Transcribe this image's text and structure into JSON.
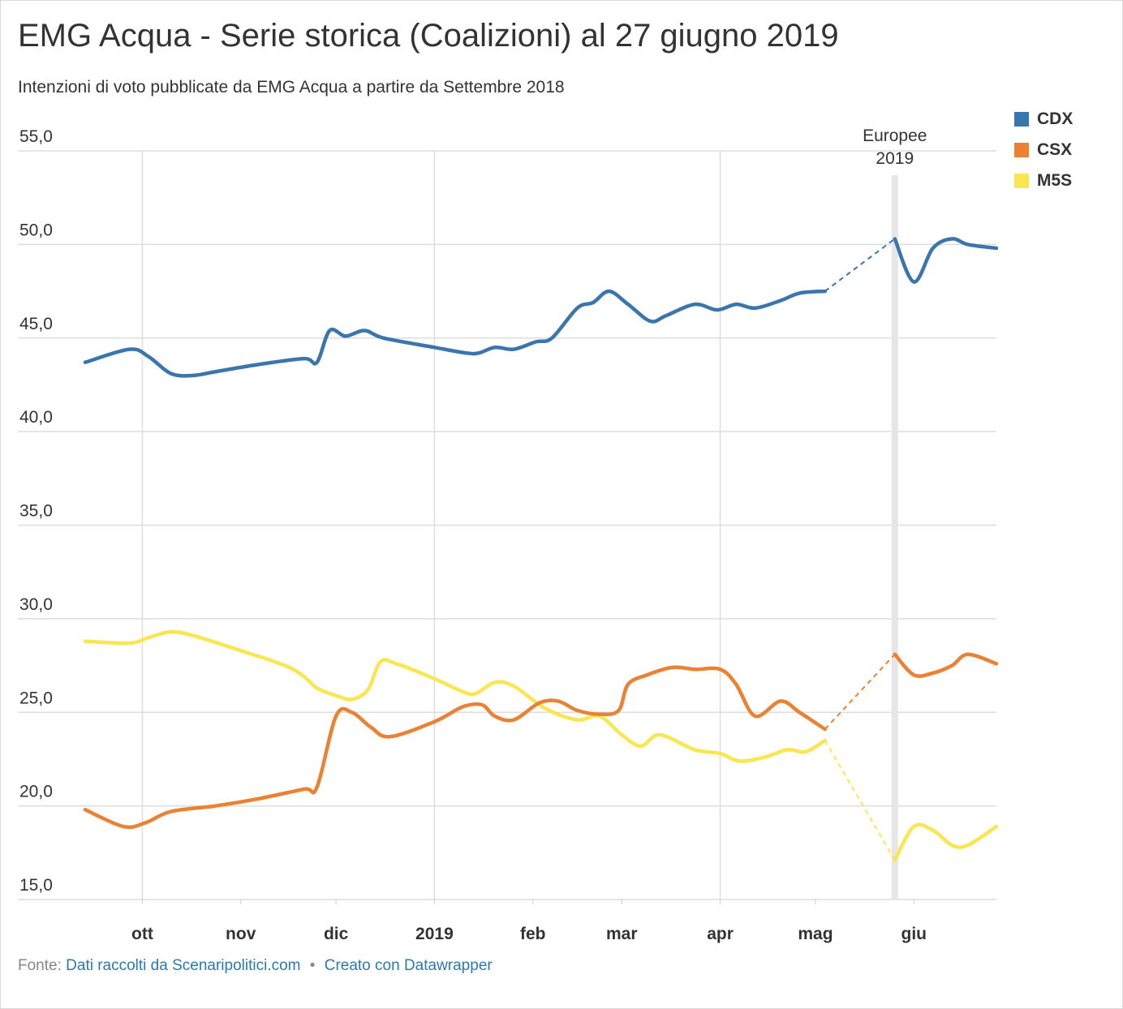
{
  "title": "EMG Acqua - Serie storica (Coalizioni) al 27 giugno 2019",
  "subtitle": "Intenzioni di voto pubblicate da EMG Acqua a partire da Settembre 2018",
  "footer": {
    "source_label": "Fonte:",
    "source_link": "Dati raccolti da Scenaripolitici.com",
    "separator": "•",
    "made_with": "Creato con Datawrapper"
  },
  "chart_data": {
    "type": "line",
    "title": "EMG Acqua - Serie storica (Coalizioni) al 27 giugno 2019",
    "xlabel": "",
    "ylabel": "",
    "ylim": [
      15,
      55
    ],
    "xlim": [
      "2018-09-13",
      "2019-06-27"
    ],
    "yticks": [
      55,
      50,
      45,
      40,
      35,
      30,
      25,
      20,
      15
    ],
    "ytick_labels": [
      "55,0",
      "50,0",
      "45,0",
      "40,0",
      "35,0",
      "30,0",
      "25,0",
      "20,0",
      "15,0"
    ],
    "xticks": [
      {
        "date": "2018-10-01",
        "label": "ott",
        "gridline": true
      },
      {
        "date": "2018-11-01",
        "label": "nov",
        "gridline": false
      },
      {
        "date": "2018-12-01",
        "label": "dic",
        "gridline": false
      },
      {
        "date": "2019-01-01",
        "label": "2019",
        "gridline": true
      },
      {
        "date": "2019-02-01",
        "label": "feb",
        "gridline": false
      },
      {
        "date": "2019-03-01",
        "label": "mar",
        "gridline": false
      },
      {
        "date": "2019-04-01",
        "label": "apr",
        "gridline": true
      },
      {
        "date": "2019-05-01",
        "label": "mag",
        "gridline": false
      },
      {
        "date": "2019-06-01",
        "label": "giu",
        "gridline": false
      }
    ],
    "grid": true,
    "legend": "top-right",
    "annotation": {
      "date": "2019-05-26",
      "text_lines": [
        "Europee",
        "2019"
      ]
    },
    "series": [
      {
        "name": "CDX",
        "color": "#3a75ad",
        "points": [
          [
            "2018-09-13",
            43.7
          ],
          [
            "2018-09-27",
            44.4
          ],
          [
            "2018-10-03",
            44.0
          ],
          [
            "2018-10-10",
            43.1
          ],
          [
            "2018-10-17",
            43.0
          ],
          [
            "2018-10-24",
            43.2
          ],
          [
            "2018-11-07",
            43.6
          ],
          [
            "2018-11-21",
            43.9
          ],
          [
            "2018-11-25",
            43.7
          ],
          [
            "2018-11-29",
            45.4
          ],
          [
            "2018-12-04",
            45.1
          ],
          [
            "2018-12-10",
            45.4
          ],
          [
            "2018-12-16",
            45.0
          ],
          [
            "2019-01-01",
            44.5
          ],
          [
            "2019-01-11",
            44.2
          ],
          [
            "2019-01-15",
            44.2
          ],
          [
            "2019-01-20",
            44.5
          ],
          [
            "2019-01-26",
            44.4
          ],
          [
            "2019-02-02",
            44.8
          ],
          [
            "2019-02-07",
            45.0
          ],
          [
            "2019-02-15",
            46.6
          ],
          [
            "2019-02-20",
            46.9
          ],
          [
            "2019-02-25",
            47.5
          ],
          [
            "2019-03-03",
            46.8
          ],
          [
            "2019-03-10",
            45.9
          ],
          [
            "2019-03-15",
            46.2
          ],
          [
            "2019-03-24",
            46.8
          ],
          [
            "2019-03-31",
            46.5
          ],
          [
            "2019-04-06",
            46.8
          ],
          [
            "2019-04-12",
            46.6
          ],
          [
            "2019-04-20",
            47.0
          ],
          [
            "2019-04-26",
            47.4
          ],
          [
            "2019-05-04",
            47.5
          ]
        ],
        "post_election_points": [
          [
            "2019-05-26",
            50.3
          ],
          [
            "2019-06-01",
            48.0
          ],
          [
            "2019-06-07",
            49.8
          ],
          [
            "2019-06-13",
            50.3
          ],
          [
            "2019-06-18",
            50.0
          ],
          [
            "2019-06-27",
            49.8
          ]
        ]
      },
      {
        "name": "CSX",
        "color": "#ea8133",
        "points": [
          [
            "2018-09-13",
            19.8
          ],
          [
            "2018-09-25",
            18.9
          ],
          [
            "2018-10-02",
            19.1
          ],
          [
            "2018-10-10",
            19.7
          ],
          [
            "2018-10-24",
            20.0
          ],
          [
            "2018-11-07",
            20.4
          ],
          [
            "2018-11-21",
            20.9
          ],
          [
            "2018-11-25",
            21.0
          ],
          [
            "2018-12-01",
            24.8
          ],
          [
            "2018-12-06",
            25.0
          ],
          [
            "2018-12-12",
            24.2
          ],
          [
            "2018-12-18",
            23.7
          ],
          [
            "2019-01-01",
            24.5
          ],
          [
            "2019-01-10",
            25.3
          ],
          [
            "2019-01-16",
            25.4
          ],
          [
            "2019-01-20",
            24.8
          ],
          [
            "2019-01-26",
            24.6
          ],
          [
            "2019-02-03",
            25.5
          ],
          [
            "2019-02-09",
            25.6
          ],
          [
            "2019-02-15",
            25.1
          ],
          [
            "2019-02-22",
            24.9
          ],
          [
            "2019-02-28",
            25.1
          ],
          [
            "2019-03-03",
            26.5
          ],
          [
            "2019-03-09",
            27.0
          ],
          [
            "2019-03-17",
            27.4
          ],
          [
            "2019-03-24",
            27.3
          ],
          [
            "2019-04-01",
            27.3
          ],
          [
            "2019-04-06",
            26.5
          ],
          [
            "2019-04-12",
            24.8
          ],
          [
            "2019-04-20",
            25.6
          ],
          [
            "2019-04-26",
            25.0
          ],
          [
            "2019-05-04",
            24.1
          ]
        ],
        "post_election_points": [
          [
            "2019-05-26",
            28.1
          ],
          [
            "2019-06-01",
            27.0
          ],
          [
            "2019-06-07",
            27.1
          ],
          [
            "2019-06-13",
            27.5
          ],
          [
            "2019-06-18",
            28.1
          ],
          [
            "2019-06-27",
            27.6
          ]
        ]
      },
      {
        "name": "M5S",
        "color": "#fae650",
        "points": [
          [
            "2018-09-13",
            28.8
          ],
          [
            "2018-09-27",
            28.7
          ],
          [
            "2018-10-03",
            29.0
          ],
          [
            "2018-10-10",
            29.3
          ],
          [
            "2018-10-17",
            29.1
          ],
          [
            "2018-11-01",
            28.3
          ],
          [
            "2018-11-15",
            27.5
          ],
          [
            "2018-11-21",
            26.9
          ],
          [
            "2018-11-25",
            26.3
          ],
          [
            "2018-12-01",
            25.9
          ],
          [
            "2018-12-06",
            25.7
          ],
          [
            "2018-12-11",
            26.2
          ],
          [
            "2018-12-15",
            27.7
          ],
          [
            "2018-12-20",
            27.6
          ],
          [
            "2019-01-01",
            26.8
          ],
          [
            "2019-01-10",
            26.1
          ],
          [
            "2019-01-14",
            26.0
          ],
          [
            "2019-01-20",
            26.6
          ],
          [
            "2019-01-26",
            26.4
          ],
          [
            "2019-02-05",
            25.2
          ],
          [
            "2019-02-15",
            24.6
          ],
          [
            "2019-02-22",
            24.8
          ],
          [
            "2019-03-01",
            23.8
          ],
          [
            "2019-03-07",
            23.2
          ],
          [
            "2019-03-13",
            23.8
          ],
          [
            "2019-03-24",
            23.0
          ],
          [
            "2019-04-01",
            22.8
          ],
          [
            "2019-04-07",
            22.4
          ],
          [
            "2019-04-15",
            22.6
          ],
          [
            "2019-04-22",
            23.0
          ],
          [
            "2019-04-28",
            22.9
          ],
          [
            "2019-05-04",
            23.5
          ]
        ],
        "post_election_points": [
          [
            "2019-05-26",
            17.1
          ],
          [
            "2019-06-01",
            18.9
          ],
          [
            "2019-06-07",
            18.7
          ],
          [
            "2019-06-13",
            17.9
          ],
          [
            "2019-06-18",
            17.9
          ],
          [
            "2019-06-27",
            18.9
          ]
        ]
      }
    ]
  }
}
